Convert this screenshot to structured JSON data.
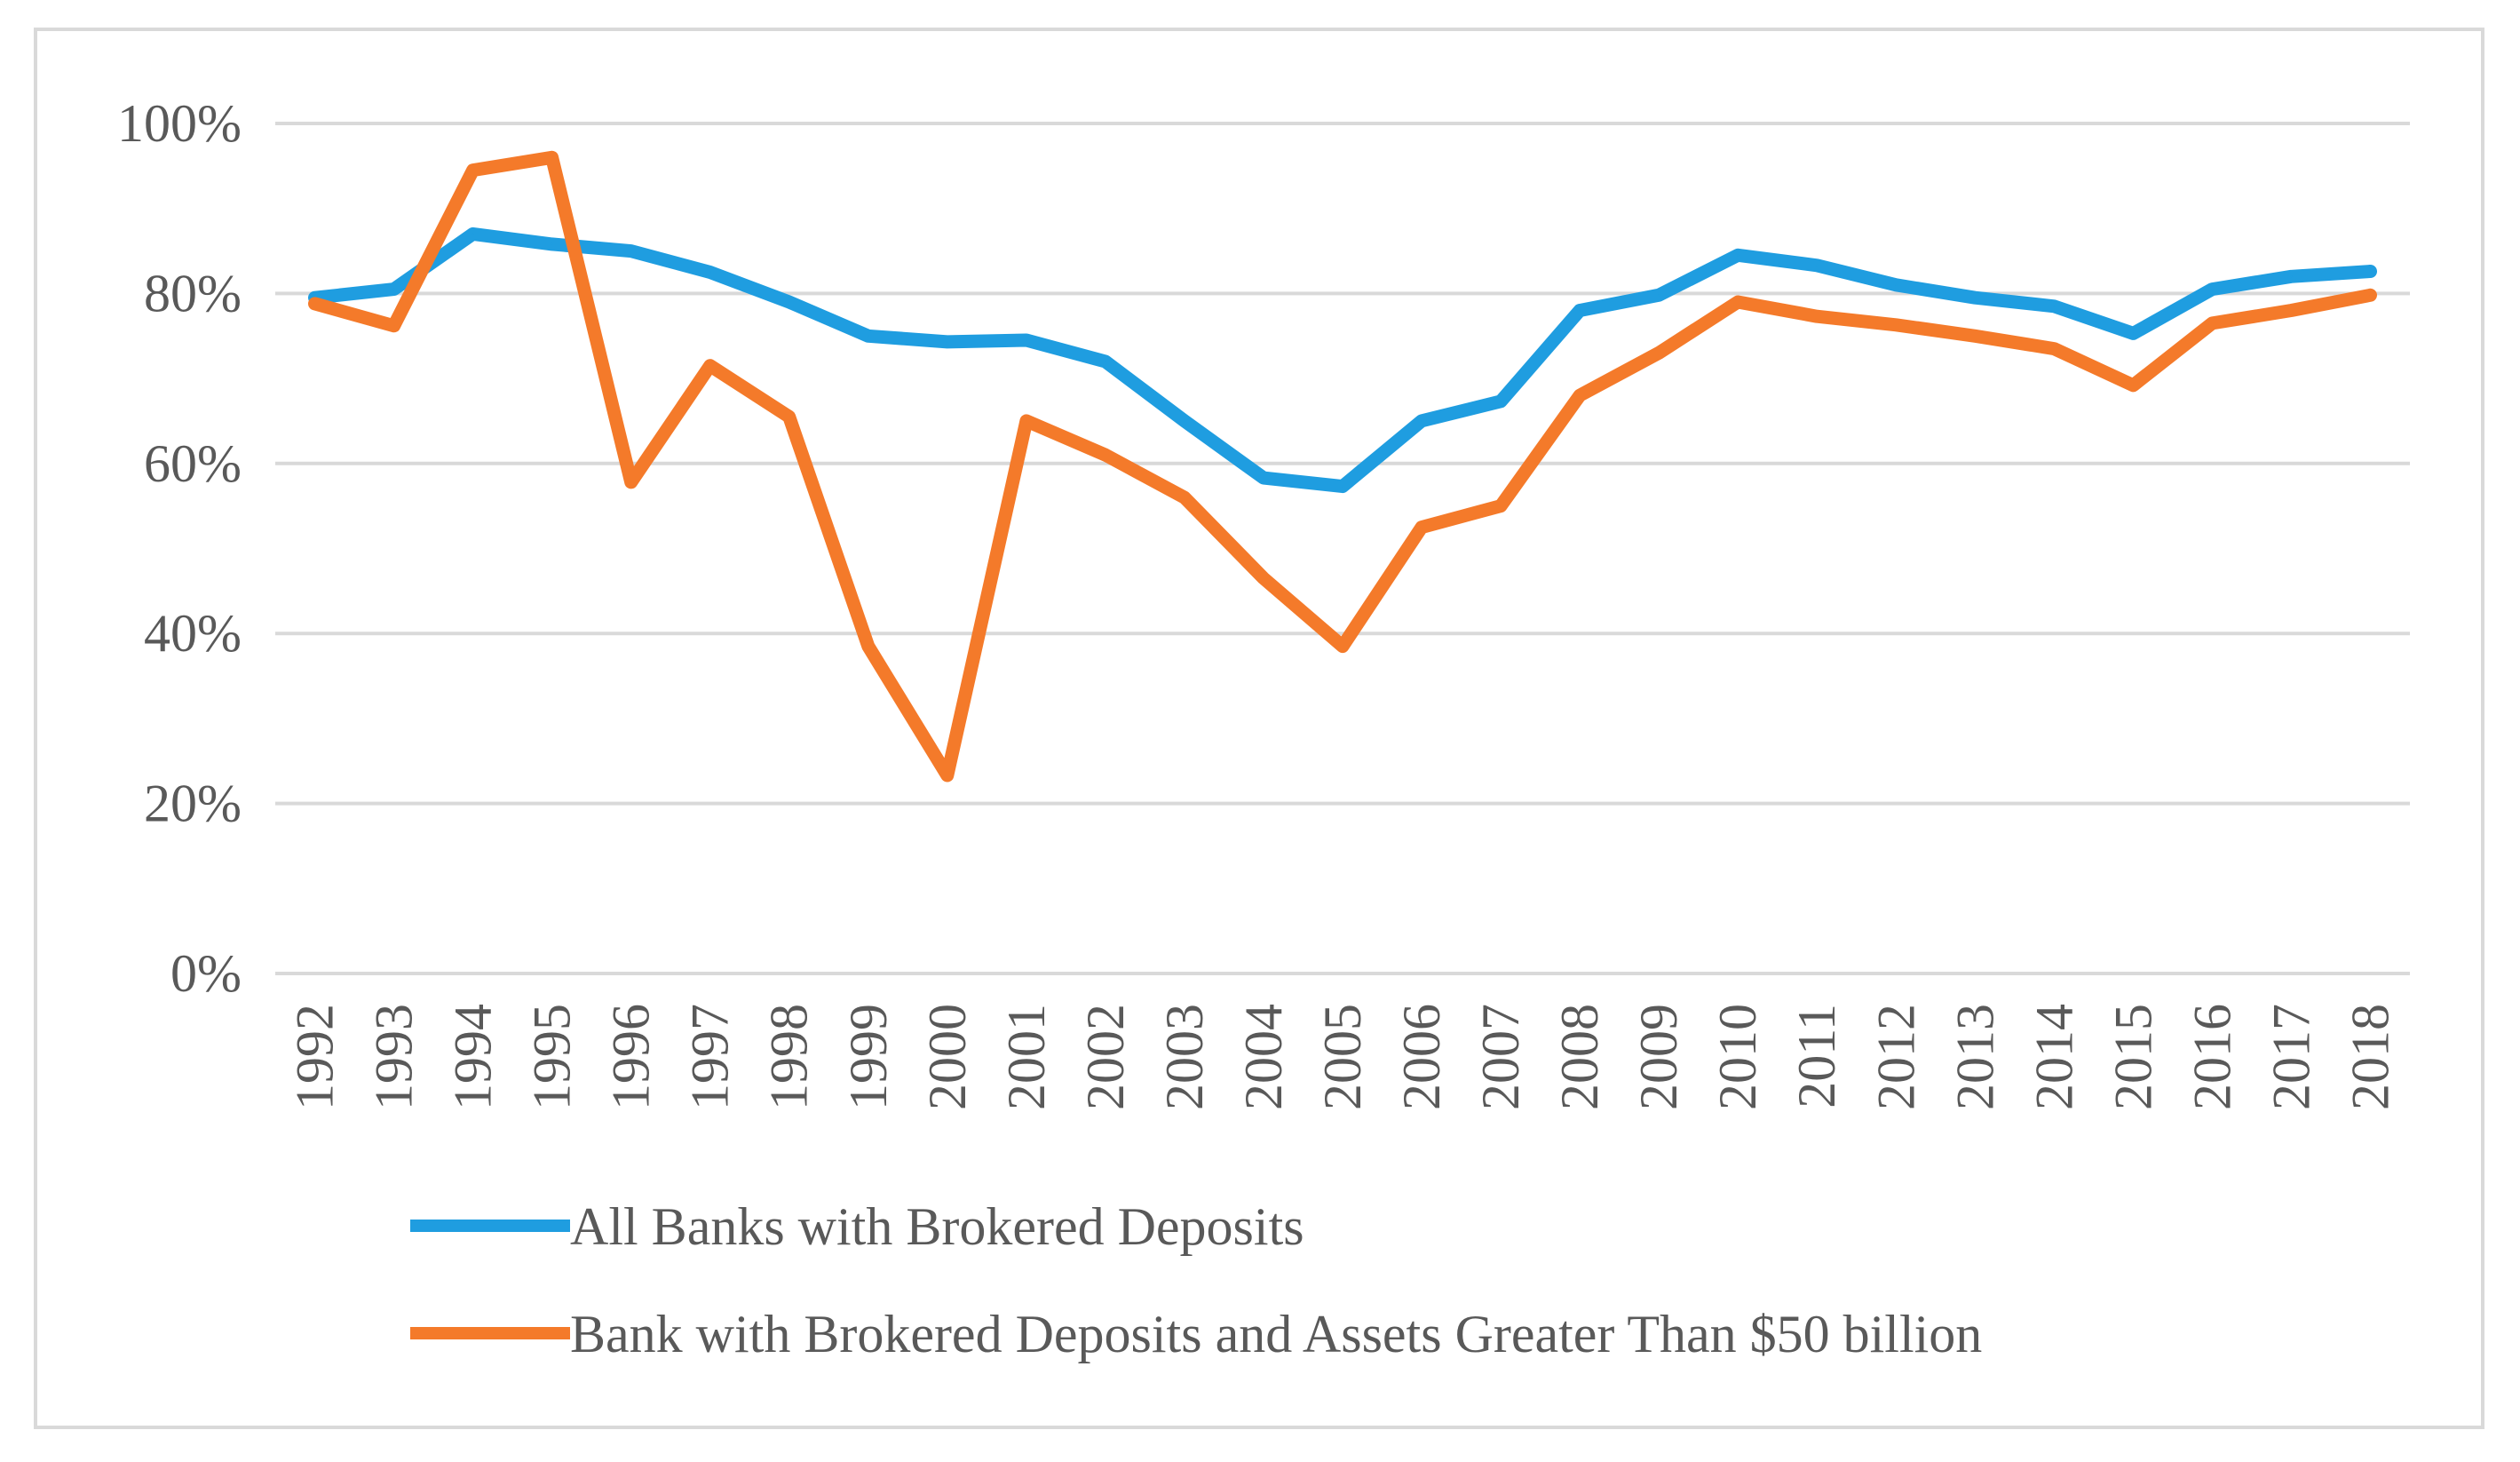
{
  "chart_data": {
    "type": "line",
    "title": "",
    "xlabel": "",
    "ylabel": "",
    "ylim": [
      0,
      100
    ],
    "y_ticks": [
      {
        "value": 0,
        "label": "0%"
      },
      {
        "value": 20,
        "label": "20%"
      },
      {
        "value": 40,
        "label": "40%"
      },
      {
        "value": 60,
        "label": "60%"
      },
      {
        "value": 80,
        "label": "80%"
      },
      {
        "value": 100,
        "label": "100%"
      }
    ],
    "grid": true,
    "legend_position": "bottom-left",
    "categories": [
      "1992",
      "1993",
      "1994",
      "1995",
      "1996",
      "1997",
      "1998",
      "1999",
      "2000",
      "2001",
      "2002",
      "2003",
      "2004",
      "2005",
      "2006",
      "2007",
      "2008",
      "2009",
      "2010",
      "2011",
      "2012",
      "2013",
      "2014",
      "2015",
      "2016",
      "2017",
      "2018"
    ],
    "series": [
      {
        "name": "All Banks with Brokered Deposits",
        "color": "#1f9de0",
        "values": [
          79.5,
          80.5,
          87,
          85.8,
          85,
          82.5,
          79,
          75,
          74.3,
          74.5,
          72,
          65,
          58.3,
          57.3,
          65,
          67.3,
          78,
          79.8,
          84.5,
          83.3,
          81,
          79.5,
          78.5,
          75.3,
          80.5,
          82,
          82.6
        ]
      },
      {
        "name": "Bank with Brokered Deposits and Assets Greater Than $50 billion",
        "color": "#f47a2a",
        "values": [
          78.8,
          76.2,
          94.5,
          96,
          57.8,
          71.5,
          65.5,
          38.5,
          23.3,
          65,
          61,
          56,
          46.5,
          38.5,
          52.5,
          55,
          68,
          73,
          79,
          77.3,
          76.3,
          75,
          73.5,
          69.2,
          76.5,
          78,
          79.8
        ]
      }
    ]
  }
}
